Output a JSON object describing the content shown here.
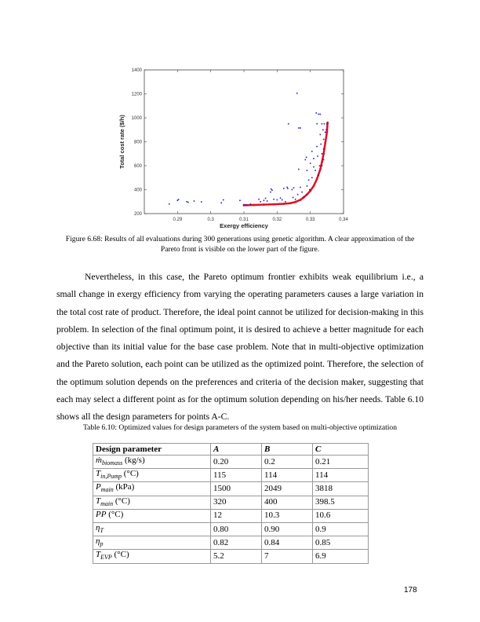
{
  "chart_data": {
    "type": "scatter",
    "xlabel": "Exergy efficiency",
    "ylabel": "Total cost rate ($/h)",
    "xlim": [
      0.28,
      0.34
    ],
    "ylim": [
      200,
      1400
    ],
    "xticks": [
      "0.29",
      "0.3",
      "0.31",
      "0.32",
      "0.33",
      "0.34"
    ],
    "yticks": [
      "200",
      "400",
      "600",
      "800",
      "1000",
      "1200",
      "1400"
    ],
    "grid": false,
    "colors": {
      "evaluations": "#2020e0",
      "pareto_front": "#e01020"
    },
    "series": [
      {
        "kind": "evaluations",
        "points": [
          [
            0.2875,
            280
          ],
          [
            0.29,
            310
          ],
          [
            0.2903,
            318
          ],
          [
            0.2928,
            300
          ],
          [
            0.2932,
            295
          ],
          [
            0.295,
            305
          ],
          [
            0.2972,
            298
          ],
          [
            0.3032,
            290
          ],
          [
            0.3038,
            315
          ],
          [
            0.3088,
            310
          ],
          [
            0.31,
            275
          ],
          [
            0.3105,
            272
          ],
          [
            0.311,
            270
          ],
          [
            0.312,
            280
          ],
          [
            0.3145,
            320
          ],
          [
            0.315,
            300
          ],
          [
            0.316,
            310
          ],
          [
            0.3165,
            328
          ],
          [
            0.317,
            305
          ],
          [
            0.318,
            380
          ],
          [
            0.3182,
            405
          ],
          [
            0.3185,
            395
          ],
          [
            0.319,
            320
          ],
          [
            0.32,
            315
          ],
          [
            0.321,
            330
          ],
          [
            0.3215,
            315
          ],
          [
            0.322,
            410
          ],
          [
            0.3225,
            300
          ],
          [
            0.323,
            420
          ],
          [
            0.3232,
            410
          ],
          [
            0.3234,
            950
          ],
          [
            0.3245,
            400
          ],
          [
            0.3248,
            335
          ],
          [
            0.325,
            415
          ],
          [
            0.3255,
            320
          ],
          [
            0.326,
            1205
          ],
          [
            0.3262,
            360
          ],
          [
            0.3265,
            570
          ],
          [
            0.3265,
            915
          ],
          [
            0.327,
            915
          ],
          [
            0.327,
            420
          ],
          [
            0.3275,
            380
          ],
          [
            0.328,
            340
          ],
          [
            0.3285,
            650
          ],
          [
            0.3288,
            670
          ],
          [
            0.329,
            430
          ],
          [
            0.329,
            560
          ],
          [
            0.3295,
            480
          ],
          [
            0.3298,
            400
          ],
          [
            0.33,
            620
          ],
          [
            0.3305,
            720
          ],
          [
            0.3305,
            500
          ],
          [
            0.331,
            660
          ],
          [
            0.331,
            590
          ],
          [
            0.3315,
            560
          ],
          [
            0.3318,
            1040
          ],
          [
            0.332,
            760
          ],
          [
            0.332,
            950
          ],
          [
            0.3322,
            680
          ],
          [
            0.3325,
            1030
          ],
          [
            0.3328,
            600
          ],
          [
            0.333,
            1030
          ],
          [
            0.333,
            860
          ],
          [
            0.3332,
            780
          ],
          [
            0.3335,
            950
          ],
          [
            0.3335,
            700
          ],
          [
            0.3338,
            900
          ],
          [
            0.334,
            650
          ],
          [
            0.334,
            820
          ],
          [
            0.3342,
            950
          ],
          [
            0.3345,
            880
          ],
          [
            0.3348,
            900
          ],
          [
            0.335,
            950
          ],
          [
            0.3325,
            520
          ],
          [
            0.3335,
            600
          ],
          [
            0.334,
            740
          ]
        ]
      },
      {
        "kind": "pareto_front",
        "points": [
          [
            0.31,
            270
          ],
          [
            0.313,
            272
          ],
          [
            0.316,
            275
          ],
          [
            0.319,
            278
          ],
          [
            0.322,
            282
          ],
          [
            0.324,
            287
          ],
          [
            0.3255,
            297
          ],
          [
            0.327,
            315
          ],
          [
            0.328,
            335
          ],
          [
            0.329,
            360
          ],
          [
            0.33,
            390
          ],
          [
            0.331,
            430
          ],
          [
            0.332,
            490
          ],
          [
            0.333,
            570
          ],
          [
            0.3335,
            630
          ],
          [
            0.334,
            700
          ],
          [
            0.3345,
            790
          ],
          [
            0.335,
            880
          ],
          [
            0.3352,
            960
          ]
        ]
      }
    ]
  },
  "figure_caption": "Figure 6.68: Results of all evaluations during 300 generations using genetic algorithm. A clear approximation of the Pareto front is visible on the lower part of the figure.",
  "body_text": "Nevertheless, in this case, the Pareto optimum frontier exhibits weak equilibrium i.e., a small change in exergy efficiency from varying the operating parameters causes a large variation in the total cost rate of product. Therefore, the ideal point cannot be utilized for decision-making in this problem. In selection of the final optimum point, it is desired to achieve a better magnitude for each objective than its initial value for the base case problem. Note that in multi-objective optimization and the Pareto solution, each point can be utilized as the optimized point. Therefore, the selection of the optimum solution depends on the preferences and criteria of the decision maker, suggesting that each may select a different point as for the optimum solution depending on his/her needs. Table 6.10 shows all the design parameters for points A-C.",
  "table_caption": "Table 6.10: Optimized values for design parameters of the system based on multi-objective optimization",
  "table": {
    "headers": [
      "Design parameter",
      "A",
      "B",
      "C"
    ],
    "rows": [
      {
        "sym": "ṁ",
        "sub": "biomass",
        "unit": " (kg/s)",
        "v": [
          "0.20",
          "0.2",
          "0.21"
        ]
      },
      {
        "sym": "T",
        "sub": "in,Pump",
        "unit": " (°C)",
        "v": [
          "115",
          "114",
          "114"
        ]
      },
      {
        "sym": "P",
        "sub": "main",
        "unit": " (kPa)",
        "v": [
          "1500",
          "2049",
          "3818"
        ]
      },
      {
        "sym": "T",
        "sub": "main",
        "unit": " (°C)",
        "v": [
          "320",
          "400",
          "398.5"
        ]
      },
      {
        "sym": " PP",
        "sub": "",
        "unit": " (°C)",
        "v": [
          "12",
          "10.3",
          "10.6"
        ]
      },
      {
        "sym": "η",
        "sub": "T",
        "unit": "",
        "v": [
          "0.80",
          "0.90",
          "0.9"
        ]
      },
      {
        "sym": "η",
        "sub": "p",
        "unit": "",
        "v": [
          "0.82",
          "0.84",
          "0.85"
        ]
      },
      {
        "sym": "T",
        "sub": "EVP",
        "unit": " (°C)",
        "v": [
          "5.2",
          "7",
          "6.9"
        ]
      }
    ]
  },
  "page_number": "178"
}
